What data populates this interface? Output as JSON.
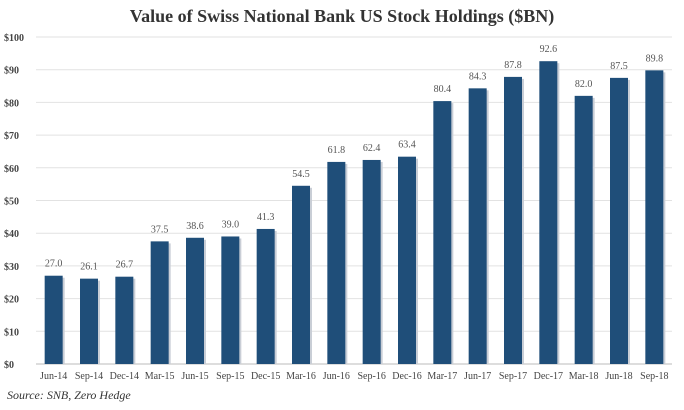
{
  "chart_data": {
    "type": "bar",
    "title": "Value of Swiss National Bank US Stock Holdings ($BN)",
    "source": "Source: SNB, Zero Hedge",
    "categories": [
      "Jun-14",
      "Sep-14",
      "Dec-14",
      "Mar-15",
      "Jun-15",
      "Sep-15",
      "Dec-15",
      "Mar-16",
      "Jun-16",
      "Sep-16",
      "Dec-16",
      "Mar-17",
      "Jun-17",
      "Sep-17",
      "Dec-17",
      "Mar-18",
      "Jun-18",
      "Sep-18"
    ],
    "values": [
      27.0,
      26.1,
      26.7,
      37.5,
      38.6,
      39.0,
      41.3,
      54.5,
      61.8,
      62.4,
      63.4,
      80.4,
      84.3,
      87.8,
      92.6,
      82.0,
      87.5,
      89.8
    ],
    "data_labels": [
      "27.0",
      "26.1",
      "26.7",
      "37.5",
      "38.6",
      "39.0",
      "41.3",
      "54.5",
      "61.8",
      "62.4",
      "63.4",
      "80.4",
      "84.3",
      "87.8",
      "92.6",
      "82.0",
      "87.5",
      "89.8"
    ],
    "yticks": [
      "$0",
      "$10",
      "$20",
      "$30",
      "$40",
      "$50",
      "$60",
      "$70",
      "$80",
      "$90",
      "$100"
    ],
    "ylim": [
      0,
      100
    ],
    "grid": true,
    "bar_color": "#1f4e79",
    "xlabel": "",
    "ylabel": ""
  }
}
